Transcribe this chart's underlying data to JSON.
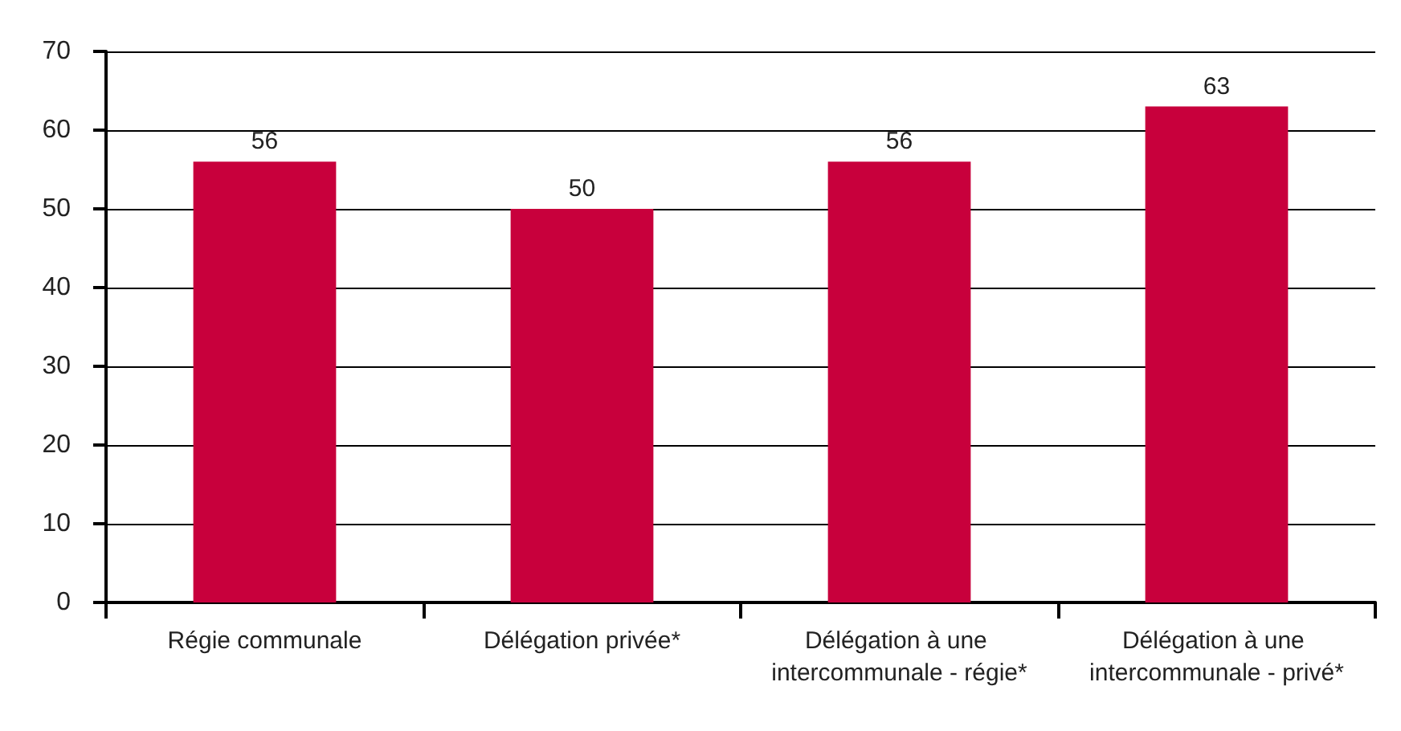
{
  "chart_data": {
    "type": "bar",
    "categories": [
      "Régie communale",
      "Délégation privée*",
      "Délégation à une intercommunale - régie*",
      "Délégation à une intercommunale - privé*"
    ],
    "values": [
      56,
      50,
      56,
      63
    ],
    "color": "#c8003c",
    "ylim": [
      0,
      70
    ],
    "yticks": [
      0,
      10,
      20,
      30,
      40,
      50,
      60,
      70
    ],
    "grid": "y",
    "data_labels": true
  }
}
